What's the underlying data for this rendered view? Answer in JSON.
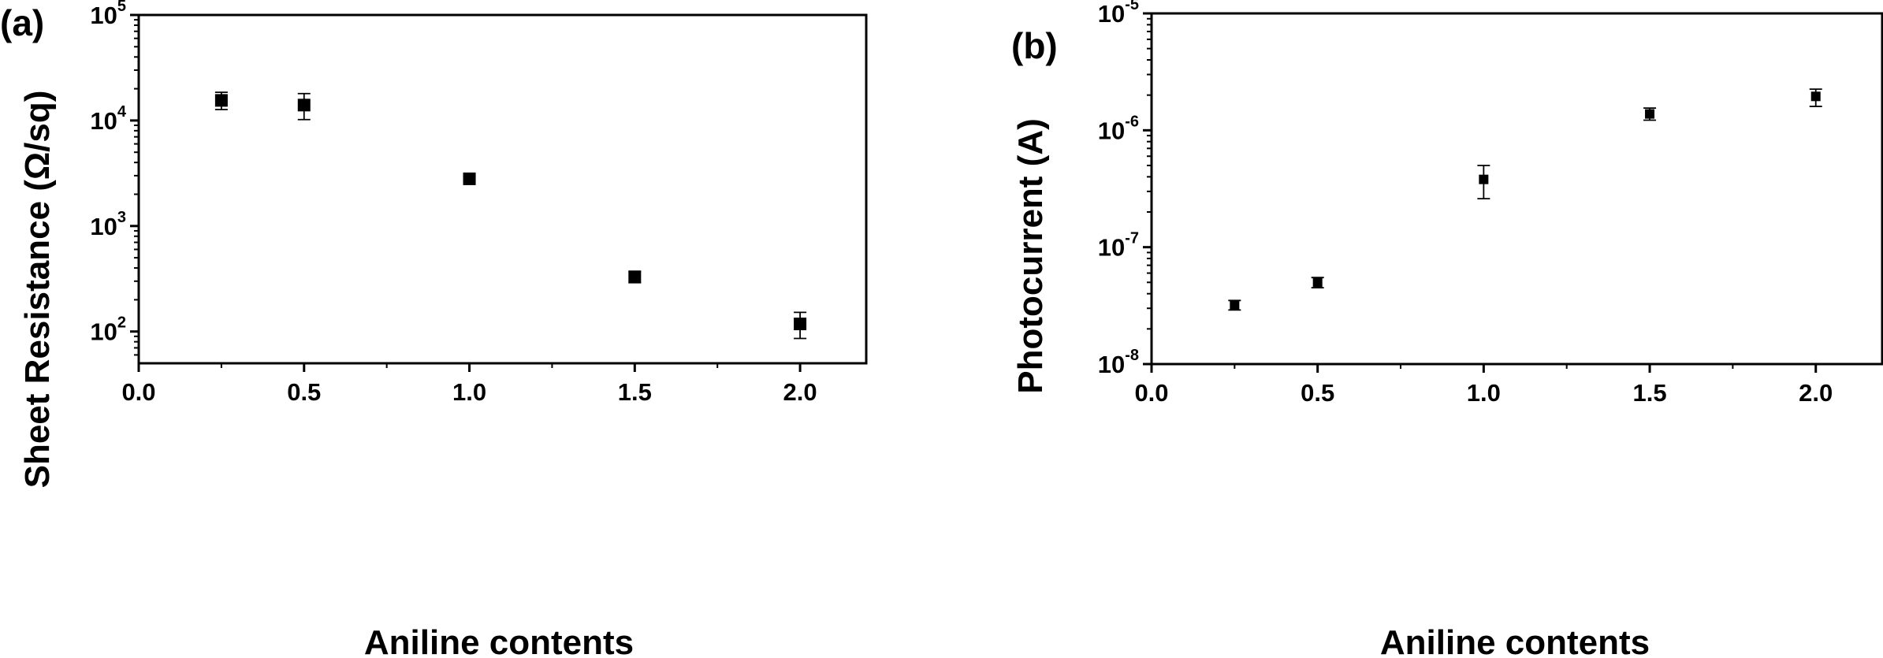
{
  "chart_data": [
    {
      "panel": "(a)",
      "type": "scatter",
      "xlabel": "Aniline contents",
      "ylabel": "Sheet Resistance (Ω/sq)",
      "xlim": [
        0.0,
        2.2
      ],
      "ylim": [
        50,
        100000
      ],
      "yscale": "log",
      "x_ticks": [
        "0.0",
        "0.5",
        "1.0",
        "1.5",
        "2.0"
      ],
      "y_ticks": [
        {
          "base": "10",
          "exp": "2"
        },
        {
          "base": "10",
          "exp": "3"
        },
        {
          "base": "10",
          "exp": "4"
        },
        {
          "base": "10",
          "exp": "5"
        }
      ],
      "grid": false,
      "marker": "square",
      "series": [
        {
          "x": [
            0.25,
            0.5,
            1.0,
            1.5,
            2.0
          ],
          "y": [
            15500,
            14000,
            2800,
            330,
            118
          ],
          "error_low": [
            12700,
            10200,
            2650,
            290,
            86
          ],
          "error_high": [
            18500,
            18000,
            2950,
            370,
            152
          ]
        }
      ]
    },
    {
      "panel": "(b)",
      "type": "scatter",
      "xlabel": "Aniline contents",
      "ylabel": "Photocurrent (A)",
      "xlim": [
        0.0,
        2.2
      ],
      "ylim": [
        1e-08,
        1e-05
      ],
      "yscale": "log",
      "x_ticks": [
        "0.0",
        "0.5",
        "1.0",
        "1.5",
        "2.0"
      ],
      "y_ticks": [
        {
          "base": "10",
          "exp": "-8"
        },
        {
          "base": "10",
          "exp": "-7"
        },
        {
          "base": "10",
          "exp": "-6"
        },
        {
          "base": "10",
          "exp": "-5"
        }
      ],
      "grid": false,
      "marker": "square",
      "series": [
        {
          "x": [
            0.25,
            0.5,
            1.0,
            1.5,
            2.0
          ],
          "y": [
            3.2e-08,
            5e-08,
            3.8e-07,
            1.38e-06,
            1.95e-06
          ],
          "error_low": [
            2.9e-08,
            4.5e-08,
            2.6e-07,
            1.22e-06,
            1.6e-06
          ],
          "error_high": [
            3.5e-08,
            5.5e-08,
            5e-07,
            1.55e-06,
            2.25e-06
          ]
        }
      ]
    }
  ]
}
